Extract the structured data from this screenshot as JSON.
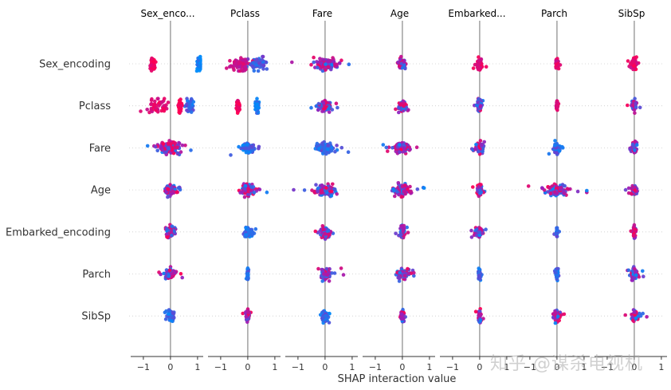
{
  "chart_data": {
    "type": "scatter",
    "subtype": "shap_interaction_summary",
    "xlabel": "SHAP interaction value",
    "features": [
      "Sex_encoding",
      "Pclass",
      "Fare",
      "Age",
      "Embarked_encoding",
      "Parch",
      "SibSp"
    ],
    "panel_titles": [
      "Sex_enco...",
      "Pclass",
      "Fare",
      "Age",
      "Embarked...",
      "Parch",
      "SibSp"
    ],
    "xlim": [
      -1.35,
      1.15
    ],
    "xticks": [
      -1,
      0,
      1
    ],
    "xtick_labels": [
      "−1",
      "0",
      "1"
    ],
    "colors": {
      "low": "#008bfb",
      "mid": "#9b1fba",
      "high": "#ff0052",
      "zero_line": "#999999",
      "grid": "#cccccc"
    },
    "cells": [
      [
        {
          "clusters": [
            {
              "c": -0.65,
              "s": 0.04,
              "h": 0.9
            },
            {
              "c": 1.1,
              "s": 0.05,
              "h": 0.0
            }
          ],
          "n": 130
        },
        {
          "clusters": [
            {
              "c": -0.3,
              "s": 0.2,
              "h": 0.75
            },
            {
              "c": 0.35,
              "s": 0.16,
              "h": 0.25
            }
          ],
          "n": 130
        },
        {
          "spread": 0.18,
          "n": 130,
          "hue": "mix"
        },
        {
          "spread": 0.06,
          "n": 80,
          "hue": "mix"
        },
        {
          "spread": 0.04,
          "n": 70,
          "hue": "high"
        },
        {
          "spread": 0.02,
          "n": 60,
          "hue": "high"
        },
        {
          "spread": 0.04,
          "n": 70,
          "hue": "high"
        }
      ],
      [
        {
          "clusters": [
            {
              "c": -0.5,
              "s": 0.18,
              "h": 0.85
            },
            {
              "c": 0.35,
              "s": 0.05,
              "h": 0.95
            },
            {
              "c": 0.7,
              "s": 0.08,
              "h": 0.2
            }
          ],
          "n": 130
        },
        {
          "clusters": [
            {
              "c": -0.35,
              "s": 0.03,
              "h": 0.95
            },
            {
              "c": 0.35,
              "s": 0.03,
              "h": 0.1
            }
          ],
          "n": 110
        },
        {
          "spread": 0.1,
          "n": 90,
          "hue": "mix"
        },
        {
          "spread": 0.07,
          "n": 70,
          "hue": "mix"
        },
        {
          "spread": 0.04,
          "n": 60,
          "hue": "mix"
        },
        {
          "spread": 0.015,
          "n": 40,
          "hue": "high"
        },
        {
          "spread": 0.04,
          "n": 50,
          "hue": "mix"
        }
      ],
      [
        {
          "spread": 0.2,
          "n": 130,
          "hue": "mix"
        },
        {
          "spread": 0.1,
          "n": 90,
          "hue": "low"
        },
        {
          "spread": 0.12,
          "n": 120,
          "hue": "low"
        },
        {
          "spread": 0.12,
          "n": 110,
          "hue": "mix"
        },
        {
          "spread": 0.07,
          "n": 80,
          "hue": "mix"
        },
        {
          "spread": 0.06,
          "n": 60,
          "hue": "low"
        },
        {
          "spread": 0.04,
          "n": 60,
          "hue": "mix"
        }
      ],
      [
        {
          "spread": 0.1,
          "n": 100,
          "hue": "mix"
        },
        {
          "spread": 0.1,
          "n": 80,
          "hue": "mix"
        },
        {
          "spread": 0.16,
          "n": 130,
          "hue": "mix"
        },
        {
          "spread": 0.14,
          "n": 120,
          "hue": "mix"
        },
        {
          "spread": 0.04,
          "n": 70,
          "hue": "mix"
        },
        {
          "spread": 0.2,
          "n": 100,
          "hue": "mix"
        },
        {
          "spread": 0.05,
          "n": 60,
          "hue": "mix"
        }
      ],
      [
        {
          "spread": 0.08,
          "n": 80,
          "hue": "mix"
        },
        {
          "spread": 0.05,
          "n": 70,
          "hue": "low"
        },
        {
          "spread": 0.08,
          "n": 100,
          "hue": "mix"
        },
        {
          "spread": 0.04,
          "n": 70,
          "hue": "mix"
        },
        {
          "spread": 0.06,
          "n": 80,
          "hue": "mix"
        },
        {
          "spread": 0.01,
          "n": 40,
          "hue": "low"
        },
        {
          "spread": 0.02,
          "n": 50,
          "hue": "mix"
        }
      ],
      [
        {
          "spread": 0.08,
          "n": 80,
          "hue": "mix"
        },
        {
          "spread": 0.01,
          "n": 50,
          "hue": "low"
        },
        {
          "spread": 0.1,
          "n": 80,
          "hue": "mix"
        },
        {
          "spread": 0.1,
          "n": 80,
          "hue": "mix"
        },
        {
          "spread": 0.02,
          "n": 50,
          "hue": "low"
        },
        {
          "spread": 0.02,
          "n": 60,
          "hue": "low"
        },
        {
          "spread": 0.07,
          "n": 60,
          "hue": "mix"
        }
      ],
      [
        {
          "spread": 0.05,
          "n": 70,
          "hue": "low"
        },
        {
          "spread": 0.03,
          "n": 60,
          "hue": "mix"
        },
        {
          "spread": 0.05,
          "n": 80,
          "hue": "low"
        },
        {
          "spread": 0.04,
          "n": 60,
          "hue": "mix"
        },
        {
          "spread": 0.02,
          "n": 50,
          "hue": "mix"
        },
        {
          "spread": 0.06,
          "n": 60,
          "hue": "mix"
        },
        {
          "spread": 0.06,
          "n": 70,
          "hue": "mix"
        }
      ]
    ]
  },
  "watermark": "知乎 @谋杀电视机"
}
